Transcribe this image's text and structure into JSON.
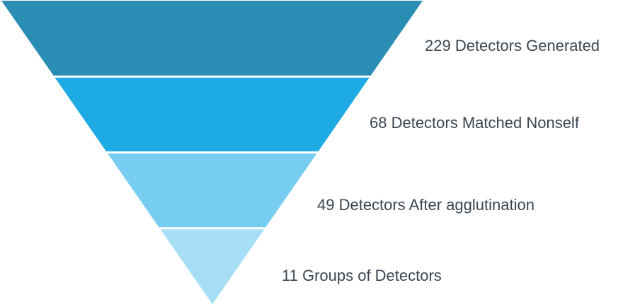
{
  "funnel": {
    "stages": [
      {
        "value": 229,
        "label": "229 Detectors Generated",
        "color": "#2a8db3"
      },
      {
        "value": 68,
        "label": "68 Detectors Matched Nonself",
        "color": "#1eabe3"
      },
      {
        "value": 49,
        "label": "49 Detectors After agglutination",
        "color": "#77cdf0"
      },
      {
        "value": 11,
        "label": "11 Groups of Detectors",
        "color": "#a6dff5"
      }
    ],
    "separator_color": "#ffffff",
    "text_color": "#3b4650"
  }
}
